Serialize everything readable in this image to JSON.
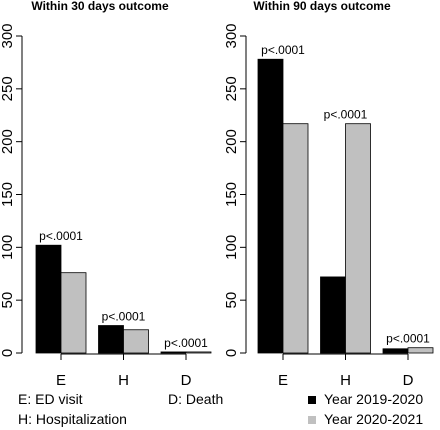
{
  "chart_data": [
    {
      "type": "bar",
      "title": "Within 30 days outcome",
      "categories": [
        "E",
        "H",
        "D"
      ],
      "series": [
        {
          "name": "Year 2019-2020",
          "values": [
            102,
            26,
            1
          ],
          "color": "#000000"
        },
        {
          "name": "Year 2020-2021",
          "values": [
            76,
            22,
            1
          ],
          "color": "#c0c0c0"
        }
      ],
      "annotations": [
        "p<.0001",
        "p<.0001",
        "p<.0001"
      ],
      "ylim": [
        0,
        300
      ],
      "yticks": [
        0,
        50,
        100,
        150,
        200,
        250,
        300
      ]
    },
    {
      "type": "bar",
      "title": "Within 90 days outcome",
      "categories": [
        "E",
        "H",
        "D"
      ],
      "series": [
        {
          "name": "Year 2019-2020",
          "values": [
            278,
            72,
            4
          ],
          "color": "#000000"
        },
        {
          "name": "Year 2020-2021",
          "values": [
            217,
            217,
            5
          ],
          "color": "#c0c0c0"
        }
      ],
      "annotations": [
        "p<.0001",
        "p<.0001",
        "p<.0001"
      ],
      "ylim": [
        0,
        300
      ],
      "yticks": [
        0,
        50,
        100,
        150,
        200,
        250,
        300
      ]
    }
  ],
  "footnotes": {
    "e": "E: ED visit",
    "h": "H: Hospitalization",
    "d": "D: Death"
  },
  "legend": [
    {
      "label": "Year 2019-2020",
      "color": "#000000"
    },
    {
      "label": "Year 2020-2021",
      "color": "#c0c0c0"
    }
  ]
}
